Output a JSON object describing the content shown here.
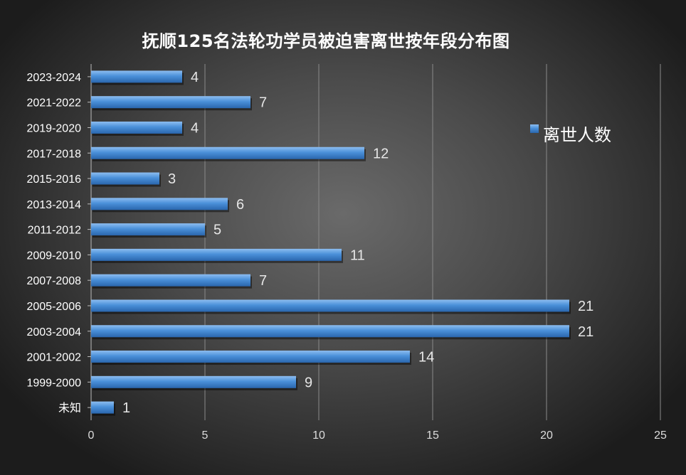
{
  "chart_data": {
    "type": "bar",
    "orientation": "horizontal",
    "title": "抚顺125名法轮功学员被迫害离世按年段分布图",
    "categories": [
      "2023-2024",
      "2021-2022",
      "2019-2020",
      "2017-2018",
      "2015-2016",
      "2013-2014",
      "2011-2012",
      "2009-2010",
      "2007-2008",
      "2005-2006",
      "2003-2004",
      "2001-2002",
      "1999-2000",
      "未知"
    ],
    "series": [
      {
        "name": "离世人数",
        "values": [
          4,
          7,
          4,
          12,
          3,
          6,
          5,
          11,
          7,
          21,
          21,
          14,
          9,
          1
        ]
      }
    ],
    "xlim": [
      0,
      25
    ],
    "xticks": [
      0,
      5,
      10,
      15,
      20,
      25
    ],
    "xlabel": "",
    "ylabel": "",
    "grid": "vertical",
    "legend_position": "right",
    "bar_color": "#4a90d9",
    "background": "dark-radial-gradient"
  }
}
